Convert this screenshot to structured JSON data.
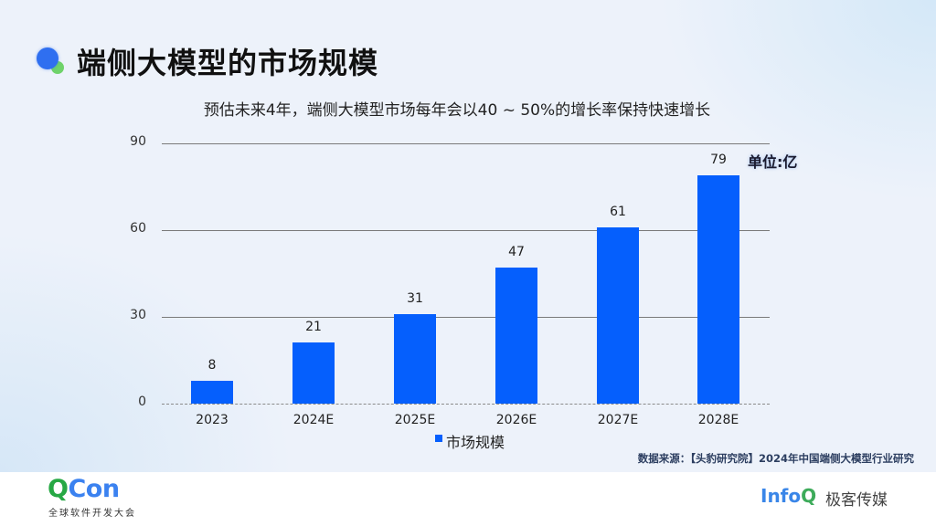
{
  "header": {
    "title": "端侧大模型的市场规模",
    "subtitle": "预估未来4年，端侧大模型市场每年会以40 ~ 50%的增长率保持快速增长"
  },
  "chart_data": {
    "type": "bar",
    "title": "预估未来4年，端侧大模型市场每年会以40 ~ 50%的增长率保持快速增长",
    "categories": [
      "2023",
      "2024E",
      "2025E",
      "2026E",
      "2027E",
      "2028E"
    ],
    "series": [
      {
        "name": "市场规模",
        "values": [
          8,
          21,
          31,
          47,
          61,
          79
        ],
        "color": "#055ffd"
      }
    ],
    "values": [
      8,
      21,
      31,
      47,
      61,
      79
    ],
    "xlabel": "",
    "ylabel": "",
    "unit": "单位:亿",
    "ylim": [
      0,
      90
    ],
    "yticks": [
      0,
      30,
      60,
      90
    ],
    "grid": true,
    "legend_position": "bottom",
    "data_labels": true
  },
  "chart": {
    "unit_label": "单位:亿",
    "yticks": [
      "0",
      "30",
      "60",
      "90"
    ],
    "legend_label": "市场规模",
    "bar_labels": [
      "8",
      "21",
      "31",
      "47",
      "61",
      "79"
    ],
    "xticks": [
      "2023",
      "2024E",
      "2025E",
      "2026E",
      "2027E",
      "2028E"
    ]
  },
  "source": "数据来源：【头豹研究院】2024年中国端侧大模型行业研究",
  "footer": {
    "qcon_q": "Q",
    "qcon_rest": "Con",
    "qcon_subtitle": "全球软件开发大会",
    "infoq_info": "Info",
    "infoq_q": "Q",
    "infoq_cn": "极客传媒"
  },
  "colors": {
    "bar": "#055ffd",
    "accent_blue": "#2f6ff0",
    "accent_green": "#6fd36a"
  }
}
